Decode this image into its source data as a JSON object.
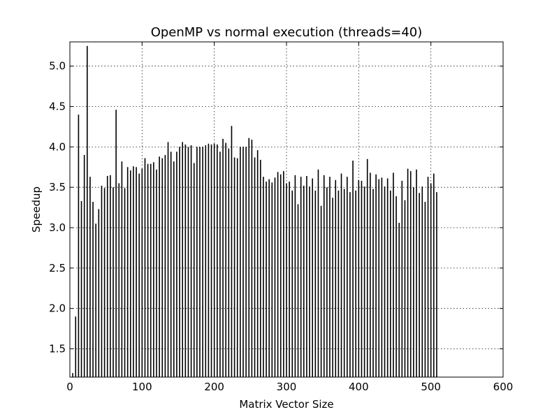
{
  "chart_data": {
    "type": "bar",
    "title": "OpenMP vs normal execution (threads=40)",
    "xlabel": "Matrix Vector Size",
    "ylabel": "Speedup",
    "xlim": [
      0,
      600
    ],
    "ylim": [
      1.15,
      5.3
    ],
    "xticks": [
      "0",
      "100",
      "200",
      "300",
      "400",
      "500",
      "600"
    ],
    "yticks": [
      "1.5",
      "2.0",
      "2.5",
      "3.0",
      "3.5",
      "4.0",
      "4.5",
      "5.0"
    ],
    "grid": true,
    "bar_color": "#000000",
    "x": [
      4,
      8,
      12,
      16,
      20,
      24,
      28,
      32,
      36,
      40,
      44,
      48,
      52,
      56,
      60,
      64,
      68,
      72,
      76,
      80,
      84,
      88,
      92,
      96,
      100,
      104,
      108,
      112,
      116,
      120,
      124,
      128,
      132,
      136,
      140,
      144,
      148,
      152,
      156,
      160,
      164,
      168,
      172,
      176,
      180,
      184,
      188,
      192,
      196,
      200,
      204,
      208,
      212,
      216,
      220,
      224,
      228,
      232,
      236,
      240,
      244,
      248,
      252,
      256,
      260,
      264,
      268,
      272,
      276,
      280,
      284,
      288,
      292,
      296,
      300,
      304,
      308,
      312,
      316,
      320,
      324,
      328,
      332,
      336,
      340,
      344,
      348,
      352,
      356,
      360,
      364,
      368,
      372,
      376,
      380,
      384,
      388,
      392,
      396,
      400,
      404,
      408,
      412,
      416,
      420,
      424,
      428,
      432,
      436,
      440,
      444,
      448,
      452,
      456,
      460,
      464,
      468,
      472,
      476,
      480,
      484,
      488,
      492,
      496,
      500,
      504,
      508
    ],
    "values": [
      1.2,
      1.9,
      4.4,
      3.33,
      3.9,
      5.25,
      3.63,
      3.32,
      3.05,
      3.23,
      3.52,
      3.49,
      3.64,
      3.65,
      3.5,
      4.46,
      3.55,
      3.82,
      3.49,
      3.75,
      3.71,
      3.76,
      3.75,
      3.67,
      3.73,
      3.86,
      3.79,
      3.79,
      3.81,
      3.72,
      3.88,
      3.86,
      3.9,
      4.06,
      3.94,
      3.82,
      3.94,
      4.0,
      4.06,
      4.03,
      4.0,
      4.02,
      3.8,
      4.0,
      4.0,
      4.0,
      4.02,
      4.04,
      4.03,
      4.04,
      4.03,
      3.94,
      4.1,
      4.05,
      3.98,
      4.26,
      3.87,
      3.86,
      4.0,
      4.0,
      4.0,
      4.11,
      4.09,
      3.87,
      3.96,
      3.84,
      3.63,
      3.57,
      3.6,
      3.56,
      3.62,
      3.69,
      3.66,
      3.7,
      3.55,
      3.57,
      3.46,
      3.65,
      3.29,
      3.63,
      3.52,
      3.64,
      3.51,
      3.61,
      3.46,
      3.72,
      3.27,
      3.65,
      3.5,
      3.63,
      3.37,
      3.59,
      3.46,
      3.67,
      3.48,
      3.63,
      3.44,
      3.83,
      3.46,
      3.59,
      3.58,
      3.51,
      3.85,
      3.68,
      3.48,
      3.66,
      3.6,
      3.62,
      3.51,
      3.61,
      3.46,
      3.68,
      3.39,
      3.06,
      3.58,
      3.34,
      3.73,
      3.7,
      3.5,
      3.72,
      3.43,
      3.51,
      3.32,
      3.63,
      3.55,
      3.67,
      3.44
    ]
  }
}
